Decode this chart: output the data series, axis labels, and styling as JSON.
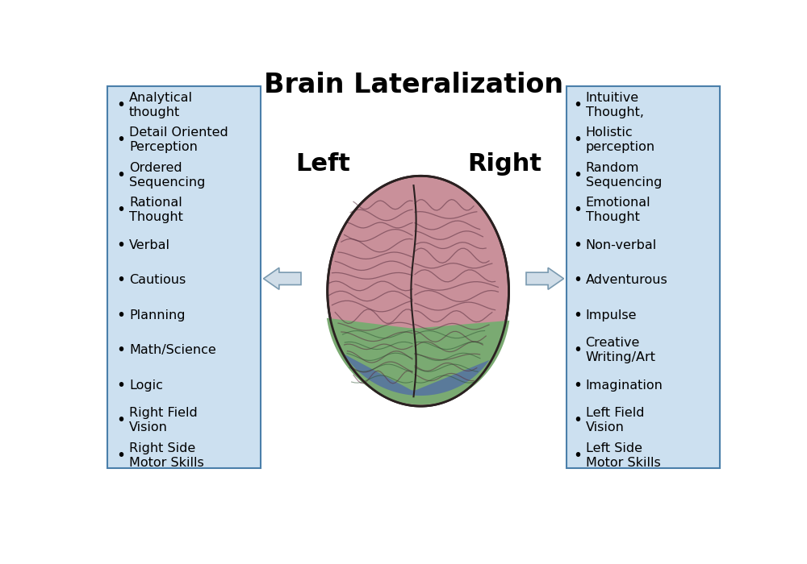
{
  "title": "Brain Lateralization",
  "title_fontsize": 24,
  "title_fontweight": "bold",
  "left_label": "Left",
  "right_label": "Right",
  "side_label_fontsize": 22,
  "side_label_fontweight": "bold",
  "bg_color": "#ffffff",
  "box_bg_color": "#cce0f0",
  "box_edge_color": "#4a7faa",
  "left_items": [
    "Analytical\nthought",
    "Detail Oriented\nPerception",
    "Ordered\nSequencing",
    "Rational\nThought",
    "Verbal",
    "Cautious",
    "Planning",
    "Math/Science",
    "Logic",
    "Right Field\nVision",
    "Right Side\nMotor Skills"
  ],
  "right_items": [
    "Intuitive\nThought,",
    "Holistic\nperception",
    "Random\nSequencing",
    "Emotional\nThought",
    "Non-verbal",
    "Adventurous",
    "Impulse",
    "Creative\nWriting/Art",
    "Imagination",
    "Left Field\nVision",
    "Left Side\nMotor Skills"
  ],
  "item_fontsize": 11.5,
  "arrow_facecolor": "#d0dde8",
  "arrow_edgecolor": "#7a9ab0",
  "brain_pink": "#c9909a",
  "brain_green": "#7aaa72",
  "brain_blue": "#5a7a9a",
  "brain_dark": "#2a2020"
}
